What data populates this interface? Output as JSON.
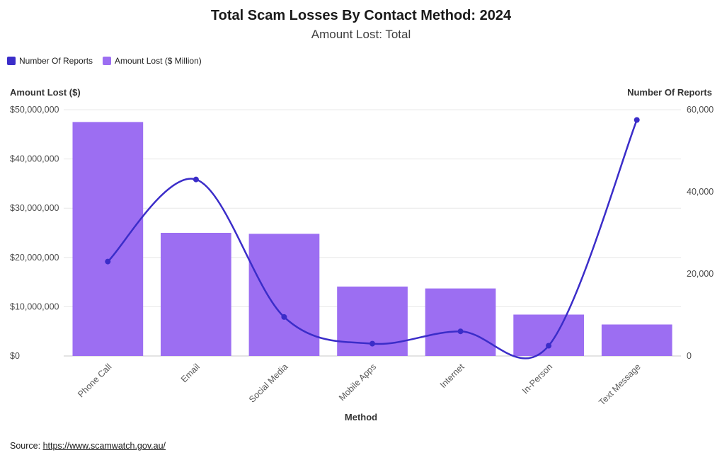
{
  "header": {
    "title": "Total Scam Losses By Contact Method: 2024",
    "subtitle": "Amount Lost: Total"
  },
  "legend": [
    {
      "label": "Number Of Reports",
      "color": "#3b2dc9"
    },
    {
      "label": "Amount Lost ($ Million)",
      "color": "#9c6ef2"
    }
  ],
  "footer": {
    "source_label": "Source: ",
    "source_link": "https://www.scamwatch.gov.au/"
  },
  "chart_data": {
    "type": "combo-bar-line",
    "title": "Total Scam Losses By Contact Method: 2024",
    "subtitle": "Amount Lost: Total",
    "xlabel": "Method",
    "categories": [
      "Phone Call",
      "Email",
      "Social Media",
      "Mobile Apps",
      "Internet",
      "In-Person",
      "Text Message"
    ],
    "series": [
      {
        "name": "Amount Lost ($ Million)",
        "type": "bar",
        "axis": "left",
        "color": "#9c6ef2",
        "values": [
          47500000,
          25000000,
          24800000,
          14100000,
          13700000,
          8400000,
          6400000
        ]
      },
      {
        "name": "Number Of Reports",
        "type": "line",
        "axis": "right",
        "color": "#3b2dc9",
        "values": [
          23000,
          43000,
          9500,
          3000,
          6000,
          2500,
          57500
        ]
      }
    ],
    "left_axis": {
      "title": "Amount Lost ($)",
      "min": 0,
      "max": 50000000,
      "ticks": [
        "$0",
        "$10,000,000",
        "$20,000,000",
        "$30,000,000",
        "$40,000,000",
        "$50,000,000"
      ],
      "tick_values": [
        0,
        10000000,
        20000000,
        30000000,
        40000000,
        50000000
      ]
    },
    "right_axis": {
      "title": "Number Of Reports",
      "min": 0,
      "max": 60000,
      "ticks": [
        "0",
        "20,000",
        "40,000",
        "60,000"
      ],
      "tick_values": [
        0,
        20000,
        40000,
        60000
      ]
    },
    "grid": "horizontal",
    "legend_position": "top-left"
  }
}
